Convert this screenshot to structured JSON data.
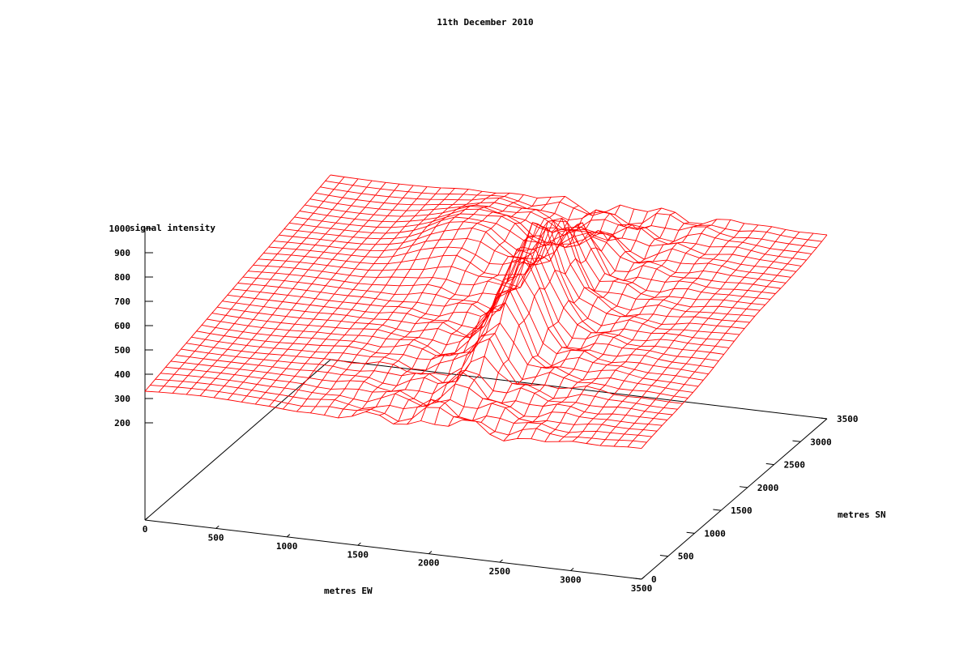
{
  "chart_data": {
    "type": "surface-3d-wireframe",
    "title": "11th December 2010",
    "xlabel": "metres EW",
    "ylabel": "metres SN",
    "zlabel": "signal intensity",
    "xlim": [
      0,
      3500
    ],
    "ylim": [
      0,
      3500
    ],
    "zlim": [
      200,
      1000
    ],
    "x_ticks": [
      "0",
      "500",
      "1000",
      "1500",
      "2000",
      "2500",
      "3000",
      "3500"
    ],
    "y_ticks": [
      "0",
      "500",
      "1000",
      "1500",
      "2000",
      "2500",
      "3000",
      "3500"
    ],
    "z_ticks": [
      "200",
      "300",
      "400",
      "500",
      "600",
      "700",
      "800",
      "900",
      "1000"
    ],
    "x_tick_values": [
      0,
      500,
      1000,
      1500,
      2000,
      2500,
      3000,
      3500
    ],
    "y_tick_values": [
      0,
      500,
      1000,
      1500,
      2000,
      2500,
      3000,
      3500
    ],
    "z_tick_values": [
      200,
      300,
      400,
      500,
      600,
      700,
      800,
      900,
      1000
    ],
    "grid_nx": 36,
    "grid_ny": 36,
    "surface_color": "#ff0000",
    "surface_description_values": {
      "base_level_low_y": 330,
      "base_level_high_y": 560,
      "ridge_x_metres": 2100,
      "ridge_peak_signal": 930,
      "ridge_peak_y_metres": 1700
    }
  }
}
